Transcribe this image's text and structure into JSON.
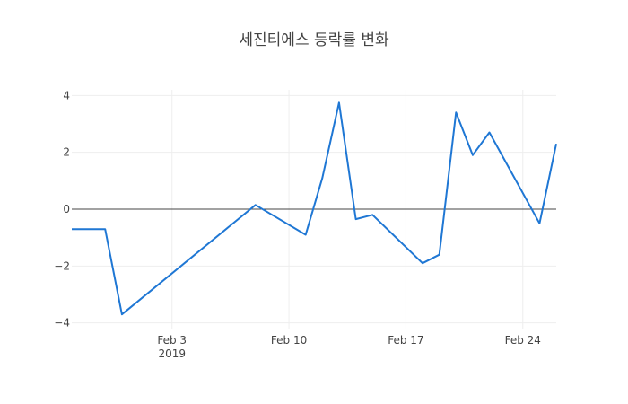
{
  "chart_data": {
    "type": "line",
    "title": "세진티에스 등락률 변화",
    "xlabel": "",
    "ylabel": "",
    "x_range": [
      "2019-01-28",
      "2019-02-26"
    ],
    "ylim": [
      -4.2,
      4.2
    ],
    "x_ticks": [
      {
        "date": "2019-02-03",
        "label": "Feb 3",
        "sublabel": "2019"
      },
      {
        "date": "2019-02-10",
        "label": "Feb 10",
        "sublabel": ""
      },
      {
        "date": "2019-02-17",
        "label": "Feb 17",
        "sublabel": ""
      },
      {
        "date": "2019-02-24",
        "label": "Feb 24",
        "sublabel": ""
      }
    ],
    "y_ticks": [
      {
        "value": 4,
        "label": "4"
      },
      {
        "value": 2,
        "label": "2"
      },
      {
        "value": 0,
        "label": "0"
      },
      {
        "value": -2,
        "label": "−2"
      },
      {
        "value": -4,
        "label": "−4"
      }
    ],
    "grid": true,
    "zero_line": true,
    "color": "#1f77d4",
    "series": [
      {
        "x": [
          "2019-01-28",
          "2019-01-30",
          "2019-01-31",
          "2019-02-08",
          "2019-02-11",
          "2019-02-12",
          "2019-02-13",
          "2019-02-14",
          "2019-02-15",
          "2019-02-18",
          "2019-02-19",
          "2019-02-20",
          "2019-02-21",
          "2019-02-22",
          "2019-02-25",
          "2019-02-26"
        ],
        "y": [
          -0.7,
          -0.7,
          -3.7,
          0.15,
          -0.9,
          1.1,
          3.75,
          -0.35,
          -0.2,
          -1.9,
          -1.6,
          3.4,
          1.9,
          2.7,
          -0.5,
          2.3
        ]
      }
    ]
  }
}
